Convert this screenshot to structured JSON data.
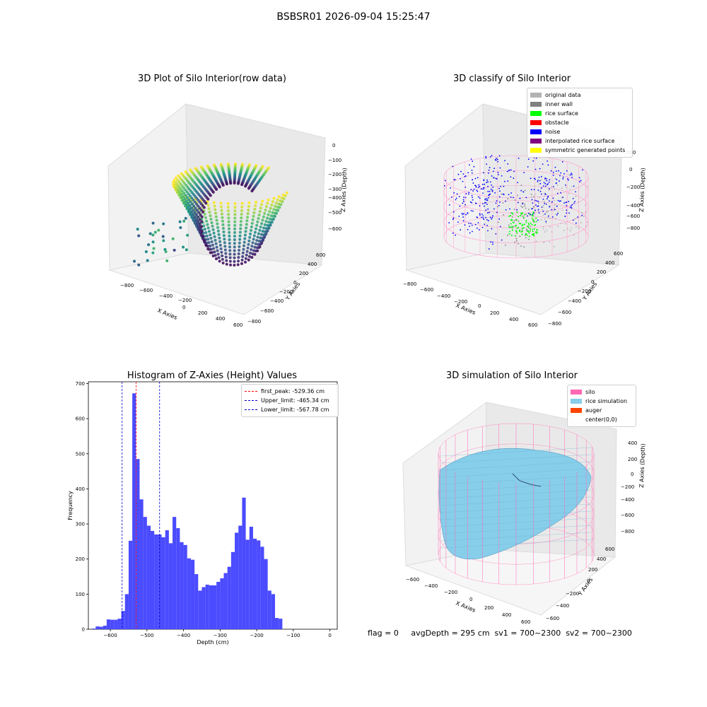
{
  "suptitle": "BSBSR01 2026-09-04 15:25:47",
  "footer": "flag = 0     avgDepth = 295 cm  sv1 = 700~2300  sv2 = 700~2300",
  "chart_data": [
    {
      "type": "scatter",
      "subtype": "3d-scatter",
      "title": "3D Plot of Silo Interior(row data)",
      "xlabel": "X Axies",
      "ylabel": "Y Axies",
      "zlabel": "Z Axies (Depth)",
      "x_ticks": [
        "−800",
        "−600",
        "−400",
        "−200",
        "0",
        "200",
        "400",
        "600"
      ],
      "y_ticks": [
        "−800",
        "−600",
        "−400",
        "−200",
        "0",
        "200",
        "400",
        "600"
      ],
      "z_ticks": [
        "0",
        "−100",
        "−200",
        "−300",
        "−400",
        "−500",
        "−600"
      ],
      "colormap": "viridis"
    },
    {
      "type": "scatter",
      "subtype": "3d-scatter",
      "title": "3D classify of Silo Interior",
      "xlabel": "X Axies",
      "ylabel": "Y Axies",
      "zlabel": "Z Axies (Depth)",
      "x_ticks": [
        "−800",
        "−600",
        "−400",
        "−200",
        "0",
        "200",
        "400",
        "600"
      ],
      "y_ticks": [
        "−800",
        "−600",
        "−400",
        "−200",
        "0",
        "200",
        "400",
        "600"
      ],
      "z_ticks": [
        "200",
        "0",
        "−200",
        "−400",
        "−600",
        "−800"
      ],
      "legend_position": "top-right",
      "legend": [
        {
          "label": "original data",
          "color": "#b3b3b3"
        },
        {
          "label": "inner wall",
          "color": "#808080"
        },
        {
          "label": "rice surface",
          "color": "#00ff00"
        },
        {
          "label": "obstacle",
          "color": "#ff0000"
        },
        {
          "label": "noise",
          "color": "#0000ff"
        },
        {
          "label": "interpolated rice surface",
          "color": "#800080"
        },
        {
          "label": "symmetric generated points",
          "color": "#ffff00"
        }
      ]
    },
    {
      "type": "bar",
      "subtype": "histogram",
      "title": "Histogram of Z-Axies (Height) Values",
      "xlabel": "Depth (cm)",
      "ylabel": "Frequency",
      "xlim": [
        -660,
        20
      ],
      "ylim": [
        0,
        705
      ],
      "x_ticks": [
        -600,
        -500,
        -400,
        -300,
        -200,
        -100,
        0
      ],
      "y_ticks": [
        0,
        100,
        200,
        300,
        400,
        500,
        600,
        700
      ],
      "bar_color": "#4b4bff",
      "bin_width": 10,
      "bins": [
        [
          -650,
          2
        ],
        [
          -640,
          8
        ],
        [
          -630,
          7
        ],
        [
          -620,
          10
        ],
        [
          -610,
          28
        ],
        [
          -600,
          27
        ],
        [
          -590,
          27
        ],
        [
          -580,
          30
        ],
        [
          -570,
          52
        ],
        [
          -560,
          100
        ],
        [
          -550,
          252
        ],
        [
          -540,
          672
        ],
        [
          -530,
          485
        ],
        [
          -520,
          370
        ],
        [
          -510,
          320
        ],
        [
          -500,
          295
        ],
        [
          -490,
          280
        ],
        [
          -480,
          270
        ],
        [
          -470,
          270
        ],
        [
          -460,
          262
        ],
        [
          -450,
          282
        ],
        [
          -440,
          245
        ],
        [
          -430,
          320
        ],
        [
          -420,
          288
        ],
        [
          -410,
          248
        ],
        [
          -400,
          240
        ],
        [
          -390,
          202
        ],
        [
          -380,
          198
        ],
        [
          -370,
          157
        ],
        [
          -360,
          110
        ],
        [
          -350,
          120
        ],
        [
          -340,
          127
        ],
        [
          -330,
          125
        ],
        [
          -320,
          125
        ],
        [
          -310,
          135
        ],
        [
          -300,
          145
        ],
        [
          -290,
          160
        ],
        [
          -280,
          178
        ],
        [
          -270,
          220
        ],
        [
          -260,
          275
        ],
        [
          -250,
          295
        ],
        [
          -240,
          375
        ],
        [
          -230,
          255
        ],
        [
          -220,
          292
        ],
        [
          -210,
          258
        ],
        [
          -200,
          253
        ],
        [
          -190,
          235
        ],
        [
          -180,
          200
        ],
        [
          -170,
          110
        ],
        [
          -160,
          100
        ],
        [
          -150,
          32
        ],
        [
          -140,
          30
        ]
      ],
      "vlines": [
        {
          "label": "first_peak: -529.36 cm",
          "value": -529.36,
          "color": "#ff0000"
        },
        {
          "label": "Upper_limit: -465.34 cm",
          "value": -465.34,
          "color": "#0000cc"
        },
        {
          "label": "Lower_limit: -567.78 cm",
          "value": -567.78,
          "color": "#0000cc"
        }
      ],
      "legend_position": "top-right"
    },
    {
      "type": "area",
      "subtype": "3d-surface",
      "title": "3D simulation of Silo Interior",
      "xlabel": "X Axies",
      "ylabel": "Y Axies",
      "zlabel": "Z Axies (Depth)",
      "x_ticks": [
        "−600",
        "−400",
        "−200",
        "0",
        "200",
        "400",
        "600"
      ],
      "y_ticks": [
        "−600",
        "−400",
        "−200",
        "0",
        "200",
        "400",
        "600"
      ],
      "z_ticks": [
        "400",
        "200",
        "0",
        "−200",
        "−400",
        "−600",
        "−800"
      ],
      "legend_position": "top-right",
      "legend": [
        {
          "label": "silo",
          "color": "#ff69b4"
        },
        {
          "label": "rice simulation",
          "color": "#87ceeb"
        },
        {
          "label": "auger",
          "color": "#ff4500"
        },
        {
          "label": "center(0,0)",
          "color": ""
        }
      ]
    }
  ]
}
